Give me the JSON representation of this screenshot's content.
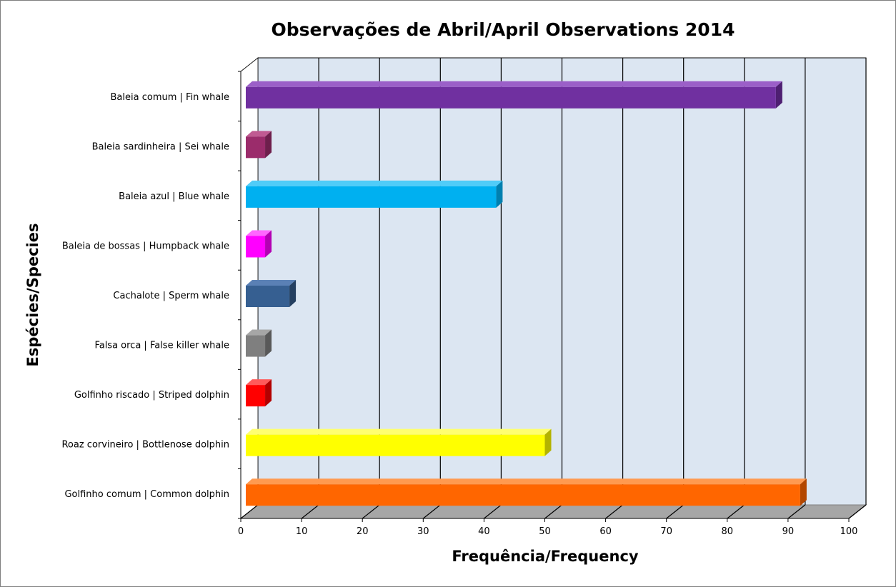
{
  "chart_data": {
    "type": "bar",
    "orientation": "horizontal",
    "title": "Observações de Abril/April Observations 2014",
    "xlabel": "Frequência/Frequency",
    "ylabel": "Espécies/Species",
    "xlim": [
      0,
      100
    ],
    "x_ticks": [
      0,
      10,
      20,
      30,
      40,
      50,
      60,
      70,
      80,
      90,
      100
    ],
    "grid": true,
    "legend": "none",
    "categories": [
      "Baleia comum | Fin whale",
      "Baleia sardinheira | Sei whale",
      "Baleia azul | Blue whale",
      "Baleia de bossas | Humpback whale",
      "Cachalote | Sperm whale",
      "Falsa orca | False killer whale",
      "Golfinho riscado | Striped dolphin",
      "Roaz corvineiro | Bottlenose dolphin",
      "Golfinho comum | Common dolphin"
    ],
    "values": [
      88,
      4,
      42,
      4,
      8,
      4,
      4,
      50,
      92
    ],
    "colors": [
      "#7030a0",
      "#9b2c6b",
      "#00b0f0",
      "#ff00ff",
      "#365f91",
      "#7f7f7f",
      "#ff0000",
      "#ffff00",
      "#ff6600"
    ],
    "side_colors": [
      "#4e1f72",
      "#6e1f4c",
      "#0080b0",
      "#b300b3",
      "#243f60",
      "#595959",
      "#b30000",
      "#b3b300",
      "#b34700"
    ],
    "top_colors": [
      "#9b5fc8",
      "#c05a92",
      "#50ccf8",
      "#ff66ff",
      "#5a80b5",
      "#a6a6a6",
      "#ff5a5a",
      "#ffff70",
      "#ff9a50"
    ],
    "wall_color": "#dce6f2",
    "floor_color": "#a6a6a6"
  }
}
